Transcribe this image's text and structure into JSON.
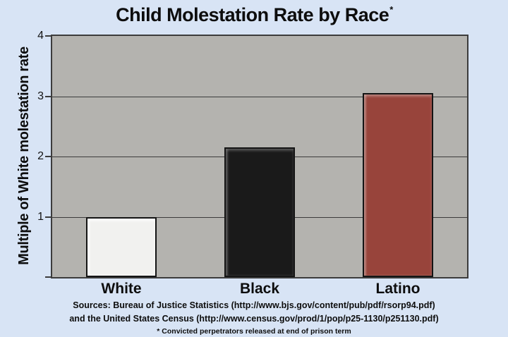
{
  "page": {
    "background": "#d8e4f5"
  },
  "chart_data": {
    "type": "bar",
    "title": "Child Molestation Rate by Race",
    "title_footnote_marker": "*",
    "categories": [
      "White",
      "Black",
      "Latino"
    ],
    "values": [
      1.0,
      2.15,
      3.05
    ],
    "bar_colors": [
      "#f1f1ef",
      "#1a1a1a",
      "#98443b"
    ],
    "bar_highlights": [
      "rgba(255,255,255,0.95)",
      "rgba(140,140,140,0.45)",
      "rgba(255,255,255,0.28)"
    ],
    "xlabel": "",
    "ylabel": "Multiple of White molestation rate",
    "ylim": [
      0,
      4
    ],
    "yticks": [
      1,
      2,
      3,
      4
    ],
    "grid": true,
    "legend_position": "none",
    "plot_background": "#b4b3af",
    "axis_color": "#3c3c3c"
  },
  "footer": {
    "source_line1": "Sources: Bureau of Justice Statistics (http://www.bjs.gov/content/pub/pdf/rsorp94.pdf)",
    "source_line2": "and the United States Census (http://www.census.gov/prod/1/pop/p25-1130/p251130.pdf)",
    "footnote": "* Convicted perpetrators released at end of prison term"
  }
}
